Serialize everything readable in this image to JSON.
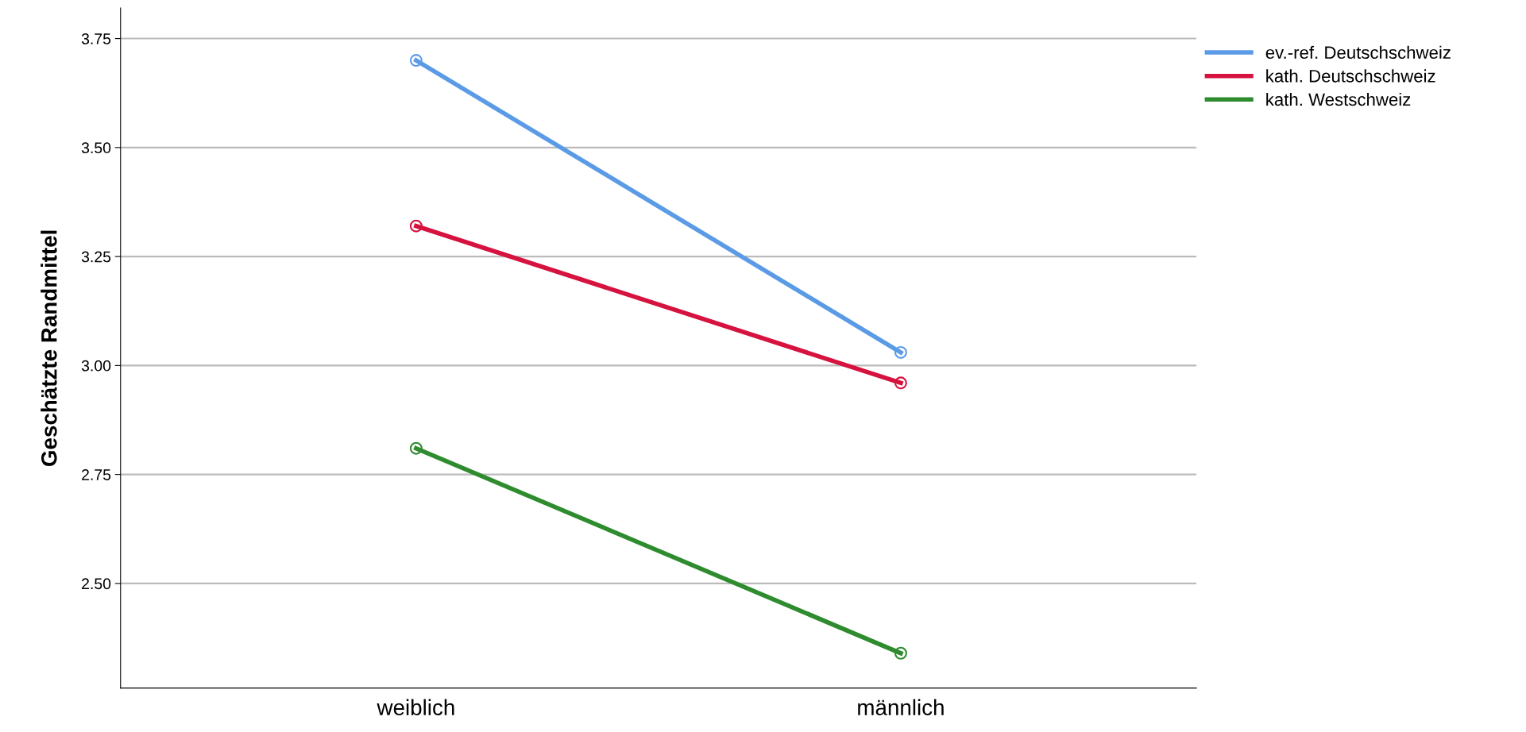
{
  "chart_data": {
    "type": "line",
    "ylabel": "Geschätzte Randmittel",
    "categories": [
      "weiblich",
      "männlich"
    ],
    "series": [
      {
        "name": "ev.-ref. Deutschschweiz",
        "color": "#5b9be6",
        "values": [
          3.7,
          3.03
        ]
      },
      {
        "name": "kath. Deutschschweiz",
        "color": "#d6123f",
        "values": [
          3.32,
          2.96
        ]
      },
      {
        "name": "kath. Westschweiz",
        "color": "#2e8b2e",
        "values": [
          2.81,
          2.34
        ]
      }
    ],
    "ylim": [
      2.26,
      3.82
    ],
    "yticks": [
      {
        "value": 2.5,
        "label": "2.50"
      },
      {
        "value": 2.75,
        "label": "2.75"
      },
      {
        "value": 3.0,
        "label": "3.00"
      },
      {
        "value": 3.25,
        "label": "3.25"
      },
      {
        "value": 3.5,
        "label": "3.50"
      },
      {
        "value": 3.75,
        "label": "3.75"
      }
    ],
    "grid": "y",
    "legend": "top right",
    "marker": "circle",
    "line_style": "solid"
  }
}
